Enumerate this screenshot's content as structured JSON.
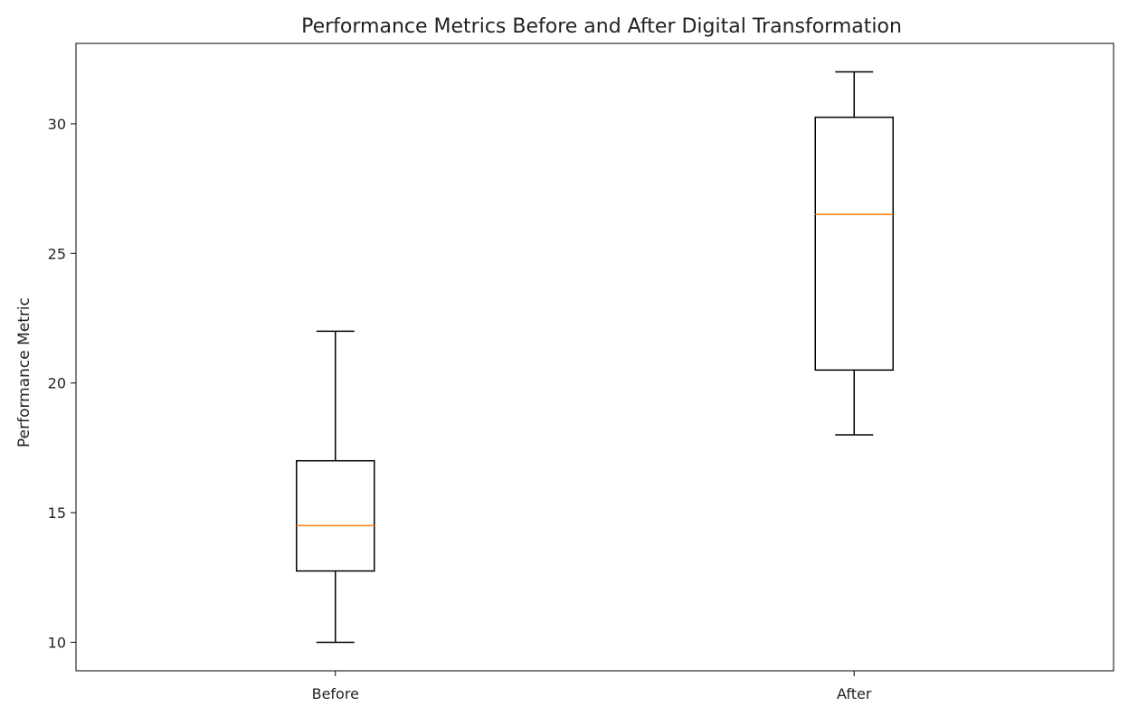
{
  "chart_data": {
    "type": "box",
    "title": "Performance Metrics Before and After Digital Transformation",
    "xlabel": "",
    "ylabel": "Performance Metric",
    "categories": [
      "Before",
      "After"
    ],
    "boxes": [
      {
        "category": "Before",
        "whisker_low": 10,
        "q1": 12.75,
        "median": 14.5,
        "q3": 17,
        "whisker_high": 22
      },
      {
        "category": "After",
        "whisker_low": 18,
        "q1": 20.5,
        "median": 26.5,
        "q3": 30.25,
        "whisker_high": 32
      }
    ],
    "yticks": [
      10,
      15,
      20,
      25,
      30
    ],
    "ylim": [
      8.9,
      33.1
    ],
    "grid": false,
    "legend": "none",
    "colors": {
      "box": "#000000",
      "median": "#ff7f0e",
      "axes": "#000000",
      "text": "#222222"
    }
  }
}
